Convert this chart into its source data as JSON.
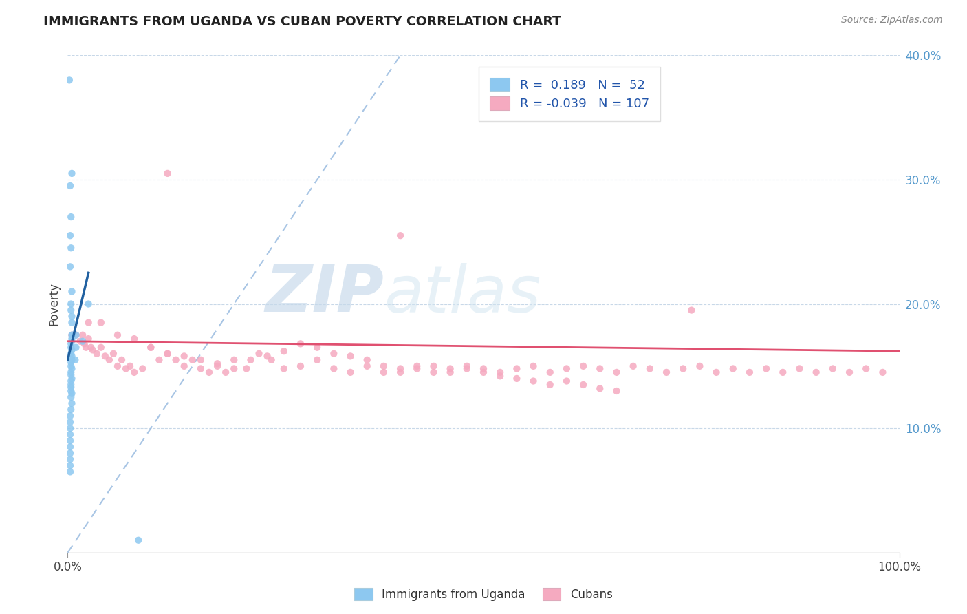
{
  "title": "IMMIGRANTS FROM UGANDA VS CUBAN POVERTY CORRELATION CHART",
  "source_text": "Source: ZipAtlas.com",
  "ylabel": "Poverty",
  "xlim": [
    0,
    1.0
  ],
  "ylim": [
    0,
    0.4
  ],
  "ytick_values": [
    0.1,
    0.2,
    0.3,
    0.4
  ],
  "legend_label1": "Immigrants from Uganda",
  "legend_label2": "Cubans",
  "r1": 0.189,
  "n1": 52,
  "r2": -0.039,
  "n2": 107,
  "color1": "#8dc8f0",
  "color2": "#f5aac0",
  "line1_color": "#2060a0",
  "line2_color": "#e05070",
  "diag_color": "#99bbe0",
  "watermark_zip": "ZIP",
  "watermark_atlas": "atlas",
  "uganda_x": [
    0.002,
    0.005,
    0.003,
    0.004,
    0.003,
    0.004,
    0.003,
    0.005,
    0.004,
    0.004,
    0.005,
    0.005,
    0.005,
    0.006,
    0.005,
    0.005,
    0.004,
    0.004,
    0.005,
    0.004,
    0.005,
    0.005,
    0.004,
    0.004,
    0.005,
    0.004,
    0.004,
    0.005,
    0.004,
    0.004,
    0.004,
    0.004,
    0.005,
    0.004,
    0.005,
    0.004,
    0.003,
    0.003,
    0.003,
    0.003,
    0.003,
    0.003,
    0.003,
    0.003,
    0.003,
    0.003,
    0.01,
    0.01,
    0.009,
    0.018,
    0.025,
    0.085
  ],
  "uganda_y": [
    0.38,
    0.305,
    0.295,
    0.27,
    0.255,
    0.245,
    0.23,
    0.21,
    0.2,
    0.195,
    0.19,
    0.185,
    0.175,
    0.175,
    0.172,
    0.17,
    0.168,
    0.165,
    0.163,
    0.16,
    0.158,
    0.155,
    0.153,
    0.15,
    0.148,
    0.145,
    0.143,
    0.14,
    0.138,
    0.135,
    0.133,
    0.13,
    0.128,
    0.125,
    0.12,
    0.115,
    0.11,
    0.105,
    0.1,
    0.095,
    0.09,
    0.085,
    0.08,
    0.075,
    0.07,
    0.065,
    0.175,
    0.165,
    0.155,
    0.17,
    0.2,
    0.01
  ],
  "cuban_x": [
    0.005,
    0.01,
    0.015,
    0.018,
    0.02,
    0.022,
    0.025,
    0.028,
    0.03,
    0.035,
    0.04,
    0.045,
    0.05,
    0.055,
    0.06,
    0.065,
    0.07,
    0.075,
    0.08,
    0.09,
    0.1,
    0.11,
    0.12,
    0.13,
    0.14,
    0.15,
    0.16,
    0.17,
    0.18,
    0.19,
    0.2,
    0.215,
    0.23,
    0.245,
    0.26,
    0.28,
    0.3,
    0.32,
    0.34,
    0.36,
    0.38,
    0.4,
    0.42,
    0.44,
    0.46,
    0.48,
    0.5,
    0.52,
    0.54,
    0.56,
    0.58,
    0.6,
    0.62,
    0.64,
    0.66,
    0.68,
    0.7,
    0.72,
    0.74,
    0.76,
    0.78,
    0.8,
    0.82,
    0.84,
    0.86,
    0.88,
    0.9,
    0.92,
    0.94,
    0.96,
    0.98,
    0.025,
    0.04,
    0.06,
    0.08,
    0.1,
    0.12,
    0.14,
    0.16,
    0.18,
    0.2,
    0.22,
    0.24,
    0.26,
    0.28,
    0.3,
    0.32,
    0.34,
    0.36,
    0.38,
    0.4,
    0.42,
    0.44,
    0.46,
    0.48,
    0.5,
    0.52,
    0.54,
    0.56,
    0.58,
    0.6,
    0.62,
    0.64,
    0.66,
    0.12,
    0.4,
    0.75
  ],
  "cuban_y": [
    0.175,
    0.175,
    0.17,
    0.175,
    0.168,
    0.165,
    0.172,
    0.165,
    0.163,
    0.16,
    0.165,
    0.158,
    0.155,
    0.16,
    0.15,
    0.155,
    0.148,
    0.15,
    0.145,
    0.148,
    0.165,
    0.155,
    0.16,
    0.155,
    0.15,
    0.155,
    0.148,
    0.145,
    0.15,
    0.145,
    0.155,
    0.148,
    0.16,
    0.155,
    0.148,
    0.15,
    0.155,
    0.148,
    0.145,
    0.15,
    0.145,
    0.148,
    0.15,
    0.145,
    0.148,
    0.15,
    0.148,
    0.145,
    0.148,
    0.15,
    0.145,
    0.148,
    0.15,
    0.148,
    0.145,
    0.15,
    0.148,
    0.145,
    0.148,
    0.15,
    0.145,
    0.148,
    0.145,
    0.148,
    0.145,
    0.148,
    0.145,
    0.148,
    0.145,
    0.148,
    0.145,
    0.185,
    0.185,
    0.175,
    0.172,
    0.165,
    0.16,
    0.158,
    0.155,
    0.152,
    0.148,
    0.155,
    0.158,
    0.162,
    0.168,
    0.165,
    0.16,
    0.158,
    0.155,
    0.15,
    0.145,
    0.148,
    0.15,
    0.145,
    0.148,
    0.145,
    0.142,
    0.14,
    0.138,
    0.135,
    0.138,
    0.135,
    0.132,
    0.13,
    0.305,
    0.255,
    0.195
  ]
}
